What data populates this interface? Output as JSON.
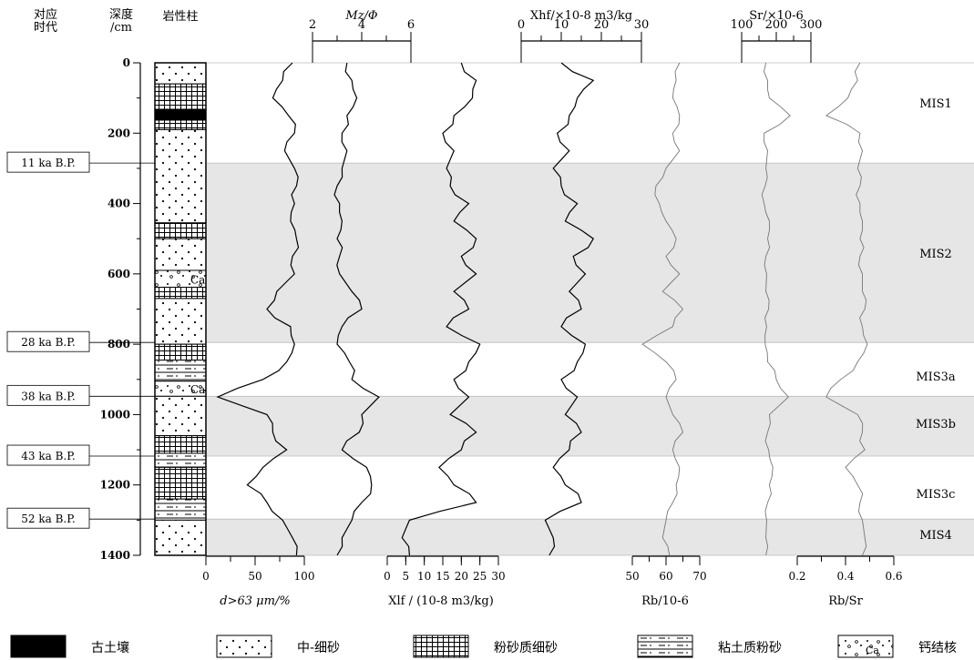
{
  "headers": {
    "age_col": "对应\n时代",
    "depth_col": "深度\n/cm",
    "litho_col": "岩性柱"
  },
  "top_axes": {
    "mz": {
      "title": "Mz/Φ",
      "ticks": [
        "2",
        "4",
        "6"
      ]
    },
    "xhf": {
      "title": "Xhf/×10-8 m3/kg",
      "ticks": [
        "0",
        "10",
        "20",
        "30"
      ]
    },
    "sr": {
      "title": "Sr/×10-6",
      "ticks": [
        "100",
        "200",
        "300"
      ]
    }
  },
  "bottom_axes": {
    "sand": {
      "title": "d>63 μm/%",
      "ticks": [
        "0",
        "50",
        "100"
      ]
    },
    "xlf": {
      "title": "Xlf / (10-8 m3/kg)",
      "ticks": [
        "0",
        "5",
        "10",
        "15",
        "20",
        "25",
        "30"
      ]
    },
    "rb": {
      "title": "Rb/10-6",
      "ticks": [
        "50",
        "60",
        "70"
      ]
    },
    "rbsr": {
      "title": "Rb/Sr",
      "ticks": [
        "0.2",
        "0.4",
        "0.6"
      ]
    }
  },
  "age_labels": [
    "11 ka B.P.",
    "28 ka B.P.",
    "38 ka B.P.",
    "43 ka B.P.",
    "52 ka B.P."
  ],
  "mis_labels": [
    "MIS1",
    "MIS2",
    "MIS3a",
    "MIS3b",
    "MIS3c",
    "MIS4"
  ],
  "ca_label": "Ca",
  "legend": [
    {
      "label": "古土壤",
      "pattern": "black"
    },
    {
      "label": "中-细砂",
      "pattern": "dots"
    },
    {
      "label": "粉砂质细砂",
      "pattern": "grid"
    },
    {
      "label": "粘土质粉砂",
      "pattern": "dashes"
    },
    {
      "label": "钙结核",
      "pattern": "ca"
    }
  ],
  "chart_data": {
    "type": "line",
    "y_axis": {
      "label": "深度/cm",
      "range": [
        0,
        1400
      ],
      "ticks": [
        0,
        200,
        400,
        600,
        800,
        1000,
        1200,
        1400
      ],
      "inverted": true
    },
    "mis_stages": [
      {
        "name": "MIS1",
        "top": 0,
        "bottom": 285,
        "shaded": false,
        "age_at_bottom": "11 ka B.P."
      },
      {
        "name": "MIS2",
        "top": 285,
        "bottom": 795,
        "shaded": true,
        "age_at_bottom": "28 ka B.P."
      },
      {
        "name": "MIS3a",
        "top": 795,
        "bottom": 948,
        "shaded": false,
        "age_at_bottom": "38 ka B.P."
      },
      {
        "name": "MIS3b",
        "top": 948,
        "bottom": 1118,
        "shaded": true,
        "age_at_bottom": "43 ka B.P."
      },
      {
        "name": "MIS3c",
        "top": 1118,
        "bottom": 1297,
        "shaded": false,
        "age_at_bottom": "52 ka B.P."
      },
      {
        "name": "MIS4",
        "top": 1297,
        "bottom": 1400,
        "shaded": true
      }
    ],
    "lithology": [
      {
        "top": 0,
        "bottom": 60,
        "type": "dots"
      },
      {
        "top": 60,
        "bottom": 132,
        "type": "grid"
      },
      {
        "top": 132,
        "bottom": 163,
        "type": "black"
      },
      {
        "top": 163,
        "bottom": 190,
        "type": "grid"
      },
      {
        "top": 190,
        "bottom": 455,
        "type": "dots"
      },
      {
        "top": 455,
        "bottom": 500,
        "type": "grid"
      },
      {
        "top": 500,
        "bottom": 590,
        "type": "dots"
      },
      {
        "top": 590,
        "bottom": 638,
        "type": "ca"
      },
      {
        "top": 638,
        "bottom": 670,
        "type": "grid"
      },
      {
        "top": 670,
        "bottom": 800,
        "type": "dots"
      },
      {
        "top": 800,
        "bottom": 845,
        "type": "grid"
      },
      {
        "top": 845,
        "bottom": 905,
        "type": "dashes"
      },
      {
        "top": 905,
        "bottom": 948,
        "type": "ca"
      },
      {
        "top": 948,
        "bottom": 1060,
        "type": "dots"
      },
      {
        "top": 1060,
        "bottom": 1110,
        "type": "grid"
      },
      {
        "top": 1110,
        "bottom": 1150,
        "type": "dashes"
      },
      {
        "top": 1150,
        "bottom": 1240,
        "type": "grid"
      },
      {
        "top": 1240,
        "bottom": 1300,
        "type": "dashes"
      },
      {
        "top": 1300,
        "bottom": 1400,
        "type": "dots"
      }
    ],
    "depth": [
      0,
      50,
      100,
      150,
      200,
      250,
      300,
      350,
      400,
      450,
      500,
      550,
      600,
      650,
      700,
      750,
      800,
      850,
      900,
      950,
      1000,
      1050,
      1100,
      1150,
      1200,
      1250,
      1300,
      1350,
      1400
    ],
    "series": [
      {
        "name": "d>63 μm/%",
        "axis": "sand",
        "range": [
          0,
          100
        ],
        "values": [
          88,
          78,
          68,
          84,
          90,
          80,
          90,
          92,
          90,
          86,
          92,
          88,
          90,
          72,
          62,
          86,
          90,
          82,
          58,
          12,
          62,
          68,
          82,
          58,
          42,
          62,
          78,
          88,
          92
        ]
      },
      {
        "name": "Mz/Φ",
        "axis": "mz",
        "range": [
          2,
          6
        ],
        "values": [
          3.4,
          3.6,
          3.8,
          3.4,
          3.2,
          3.4,
          3.2,
          3.0,
          3.1,
          3.2,
          3.0,
          3.1,
          3.1,
          3.6,
          4.0,
          3.2,
          3.0,
          3.5,
          3.6,
          4.7,
          4.0,
          3.9,
          3.2,
          4.2,
          4.4,
          4.0,
          3.6,
          3.2,
          3.0
        ]
      },
      {
        "name": "Xlf",
        "axis": "xlf",
        "range": [
          0,
          30
        ],
        "values": [
          20,
          24,
          23,
          18,
          15,
          18,
          16,
          17,
          22,
          18,
          24,
          20,
          24,
          18,
          22,
          16,
          25,
          22,
          18,
          22,
          17,
          24,
          20,
          14,
          18,
          24,
          6,
          4,
          6
        ]
      },
      {
        "name": "Xhf",
        "axis": "xhf",
        "range": [
          0,
          30
        ],
        "values": [
          10,
          18,
          14,
          12,
          9,
          12,
          8,
          10,
          14,
          11,
          18,
          13,
          16,
          12,
          15,
          10,
          16,
          14,
          10,
          14,
          11,
          15,
          12,
          8,
          11,
          15,
          6,
          8,
          7
        ]
      },
      {
        "name": "Rb/10-6",
        "axis": "rb",
        "range": [
          50,
          70
        ],
        "values": [
          64,
          63,
          62,
          64,
          62,
          64,
          60,
          57,
          58,
          60,
          63,
          60,
          64,
          59,
          65,
          62,
          53,
          60,
          63,
          60,
          62,
          65,
          62,
          64,
          63,
          62,
          60,
          59,
          61
        ]
      },
      {
        "name": "Sr/×10-6",
        "axis": "sr",
        "range": [
          100,
          300
        ],
        "values": [
          170,
          175,
          180,
          240,
          165,
          175,
          170,
          168,
          165,
          180,
          175,
          170,
          172,
          170,
          178,
          172,
          168,
          175,
          200,
          235,
          180,
          175,
          178,
          190,
          180,
          175,
          172,
          170,
          170
        ]
      },
      {
        "name": "Rb/Sr",
        "axis": "rbsr",
        "range": [
          0.2,
          0.6
        ],
        "values": [
          0.46,
          0.45,
          0.41,
          0.32,
          0.46,
          0.47,
          0.45,
          0.46,
          0.46,
          0.47,
          0.46,
          0.46,
          0.47,
          0.47,
          0.48,
          0.47,
          0.49,
          0.45,
          0.38,
          0.32,
          0.45,
          0.47,
          0.48,
          0.4,
          0.45,
          0.46,
          0.47,
          0.48,
          0.47
        ]
      }
    ]
  }
}
